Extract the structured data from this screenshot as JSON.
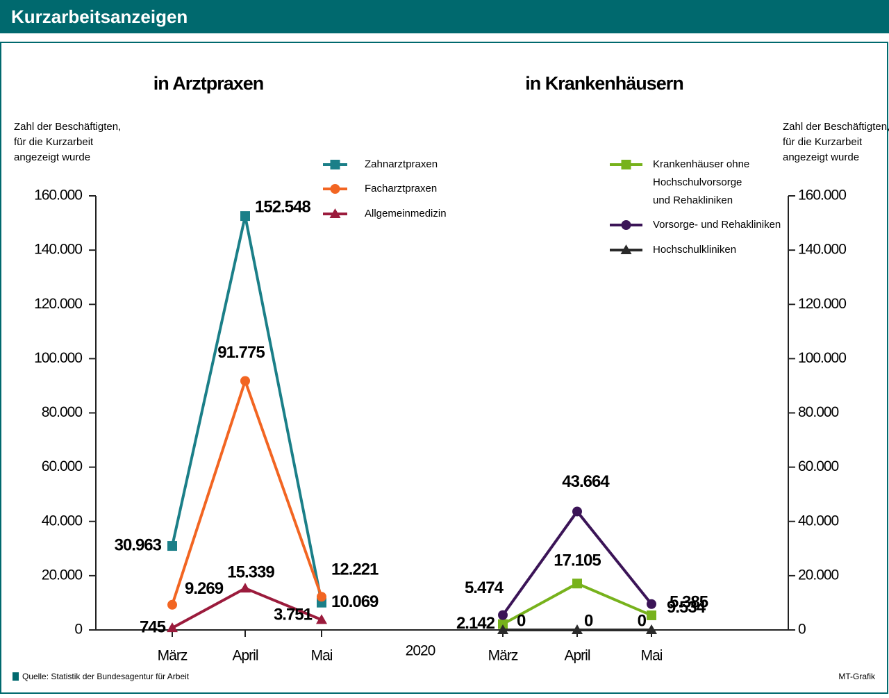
{
  "header": {
    "title": "Kurzarbeitsanzeigen"
  },
  "x_label": "2020",
  "footer": {
    "source": "Quelle: Statistik der Bundesagentur für Arbeit",
    "credit": "MT-Grafik"
  },
  "chart_data": [
    {
      "type": "line",
      "title": "in Arztpraxen",
      "y_label": "Zahl der Beschäftigten,\nfür die Kurzarbeit\nangezeigt wurde",
      "axis_side": "left",
      "categories": [
        "März",
        "April",
        "Mai"
      ],
      "ylim": [
        0,
        160000
      ],
      "yticks": [
        0,
        {
          "value": 20000,
          "label": "20.000"
        },
        {
          "value": 40000,
          "label": "40.000"
        },
        {
          "value": 60000,
          "label": "60.000"
        },
        {
          "value": 80000,
          "label": "80.000"
        },
        {
          "value": 100000,
          "label": "100.000"
        },
        {
          "value": 120000,
          "label": "120.000"
        },
        {
          "value": 140000,
          "label": "140.000"
        },
        {
          "value": 160000,
          "label": "160.000"
        }
      ],
      "series": [
        {
          "name": "Zahnarztpraxen",
          "color": "#1b7f88",
          "marker": "square",
          "values": [
            30963,
            152548,
            10069
          ],
          "value_labels": [
            "30.963",
            "152.548",
            "10.069"
          ]
        },
        {
          "name": "Facharztpraxen",
          "color": "#f26522",
          "marker": "circle",
          "values": [
            9269,
            91775,
            12221
          ],
          "value_labels": [
            "9.269",
            "91.775",
            "12.221"
          ]
        },
        {
          "name": "Allgemeinmedizin",
          "color": "#9b1b3c",
          "marker": "triangle",
          "values": [
            745,
            15339,
            3751
          ],
          "value_labels": [
            "745",
            "15.339",
            "3.751"
          ]
        }
      ]
    },
    {
      "type": "line",
      "title": "in Krankenhäusern",
      "y_label": "Zahl der Beschäftigten,\nfür die Kurzarbeit\nangezeigt wurde",
      "axis_side": "right",
      "categories": [
        "März",
        "April",
        "Mai"
      ],
      "ylim": [
        0,
        160000
      ],
      "yticks": [
        0,
        {
          "value": 20000,
          "label": "20.000"
        },
        {
          "value": 40000,
          "label": "40.000"
        },
        {
          "value": 60000,
          "label": "60.000"
        },
        {
          "value": 80000,
          "label": "80.000"
        },
        {
          "value": 100000,
          "label": "100.000"
        },
        {
          "value": 120000,
          "label": "120.000"
        },
        {
          "value": 140000,
          "label": "140.000"
        },
        {
          "value": 160000,
          "label": "160.000"
        }
      ],
      "series": [
        {
          "name": "Krankenhäuser ohne\nHochschulvorsorge\nund Rehakliniken",
          "color": "#77b21c",
          "marker": "square",
          "values": [
            2142,
            17105,
            5385
          ],
          "value_labels": [
            "2.142",
            "17.105",
            "5.385"
          ]
        },
        {
          "name": "Vorsorge- und Rehakliniken",
          "color": "#3b1457",
          "marker": "circle",
          "values": [
            5474,
            43664,
            9534
          ],
          "value_labels": [
            "5.474",
            "43.664",
            "9.534"
          ]
        },
        {
          "name": "Hochschulkliniken",
          "color": "#2a2a2a",
          "marker": "triangle",
          "values": [
            0,
            0,
            0
          ],
          "value_labels": [
            "0",
            "0",
            "0"
          ]
        }
      ]
    }
  ]
}
